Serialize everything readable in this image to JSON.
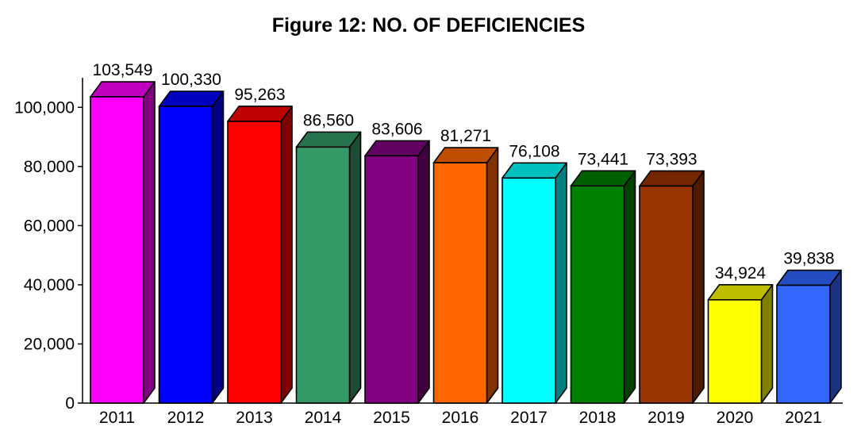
{
  "chart_data": {
    "type": "bar",
    "title": "Figure 12: NO. OF DEFICIENCIES",
    "xlabel": "",
    "ylabel": "",
    "categories": [
      "2011",
      "2012",
      "2013",
      "2014",
      "2015",
      "2016",
      "2017",
      "2018",
      "2019",
      "2020",
      "2021"
    ],
    "values": [
      103549,
      100330,
      95263,
      86560,
      83606,
      81271,
      76108,
      73441,
      73393,
      34924,
      39838
    ],
    "value_labels": [
      "103,549",
      "100,330",
      "95,263",
      "86,560",
      "83,606",
      "81,271",
      "76,108",
      "73,441",
      "73,393",
      "34,924",
      "39,838"
    ],
    "ylim": [
      0,
      110000
    ],
    "yticks": [
      0,
      20000,
      40000,
      60000,
      80000,
      100000
    ],
    "ytick_labels": [
      "0",
      "20,000",
      "40,000",
      "60,000",
      "80,000",
      "100,000"
    ],
    "grid": false,
    "legend": "none",
    "bar_style": "3d",
    "colors": [
      "#ff00ff",
      "#0000ff",
      "#ff0000",
      "#339966",
      "#800080",
      "#ff6600",
      "#00ffff",
      "#008000",
      "#993300",
      "#ffff00",
      "#3366ff"
    ]
  }
}
